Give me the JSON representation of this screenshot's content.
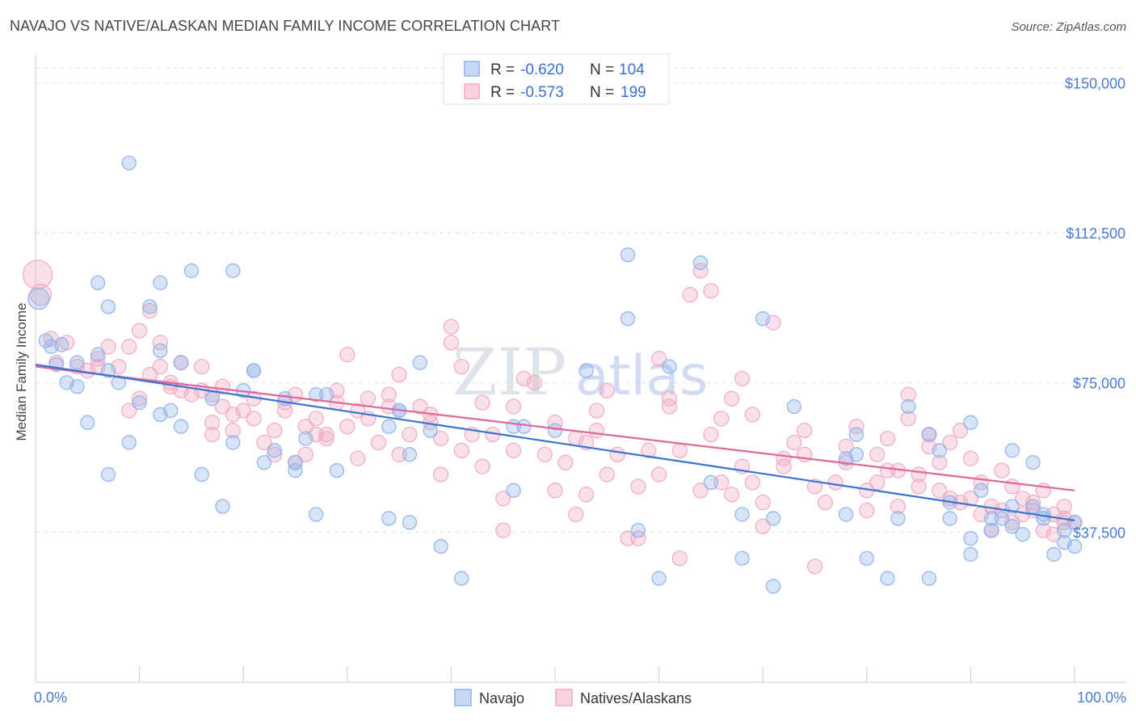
{
  "header": {
    "title": "NAVAJO VS NATIVE/ALASKAN MEDIAN FAMILY INCOME CORRELATION CHART",
    "source": "Source: ZipAtlas.com"
  },
  "watermark": {
    "zip": "ZIP",
    "atlas": "atlas"
  },
  "legend": {
    "rows": [
      {
        "r_label": "R = ",
        "r_value": "-0.620",
        "n_label": "N = ",
        "n_value": "104"
      },
      {
        "r_label": "R = ",
        "r_value": "-0.573",
        "n_label": "N = ",
        "n_value": "199"
      }
    ]
  },
  "bottom_legend": {
    "navajo": "Navajo",
    "natives": "Natives/Alaskans"
  },
  "chart_data": {
    "type": "scatter",
    "xlabel": "",
    "ylabel": "Median Family Income",
    "xlim": [
      0,
      100
    ],
    "ylim": [
      0,
      155000
    ],
    "x_tick_labels": [
      "0.0%",
      "100.0%"
    ],
    "y_ticks": [
      37500,
      75000,
      112500,
      150000
    ],
    "y_tick_labels": [
      "$37,500",
      "$75,000",
      "$112,500",
      "$150,000"
    ],
    "grid": true,
    "legend_placement": "top-center",
    "colors": {
      "navajo": "#8fb3ea",
      "navajo_line": "#3a74d0",
      "natives": "#f2a9c0",
      "natives_line": "#e0679a"
    },
    "series": [
      {
        "name": "Navajo",
        "trend": [
          [
            0,
            79500
          ],
          [
            100,
            40500
          ]
        ],
        "points": [
          [
            0.3,
            96
          ],
          [
            1,
            85.5
          ],
          [
            1.5,
            84
          ],
          [
            2,
            79.5
          ],
          [
            2.5,
            84.5
          ],
          [
            3,
            75
          ],
          [
            4,
            80
          ],
          [
            4,
            74
          ],
          [
            5,
            65
          ],
          [
            6,
            100
          ],
          [
            6,
            82
          ],
          [
            7,
            78
          ],
          [
            7,
            94
          ],
          [
            7,
            52
          ],
          [
            8,
            75
          ],
          [
            9,
            130
          ],
          [
            9,
            60
          ],
          [
            10,
            70
          ],
          [
            11,
            94
          ],
          [
            12,
            67
          ],
          [
            12,
            83
          ],
          [
            12,
            100
          ],
          [
            13,
            68
          ],
          [
            14,
            64
          ],
          [
            14,
            80
          ],
          [
            15,
            103
          ],
          [
            16,
            52
          ],
          [
            17,
            71
          ],
          [
            18,
            44
          ],
          [
            19,
            103
          ],
          [
            19,
            60
          ],
          [
            20,
            73
          ],
          [
            21,
            78
          ],
          [
            21,
            78
          ],
          [
            22,
            55
          ],
          [
            23,
            58
          ],
          [
            24,
            71
          ],
          [
            25,
            53
          ],
          [
            25,
            55
          ],
          [
            26,
            61
          ],
          [
            27,
            72
          ],
          [
            27,
            42
          ],
          [
            28,
            72
          ],
          [
            29,
            53
          ],
          [
            34,
            64
          ],
          [
            34,
            41
          ],
          [
            35,
            68
          ],
          [
            35,
            68
          ],
          [
            36,
            57
          ],
          [
            36,
            40
          ],
          [
            37,
            80
          ],
          [
            38,
            63
          ],
          [
            39,
            34
          ],
          [
            41,
            26
          ],
          [
            46,
            48
          ],
          [
            46,
            64
          ],
          [
            47,
            64
          ],
          [
            50,
            63
          ],
          [
            53,
            78
          ],
          [
            57,
            91
          ],
          [
            57,
            107
          ],
          [
            58,
            38
          ],
          [
            60,
            26
          ],
          [
            61,
            79
          ],
          [
            64,
            105
          ],
          [
            65,
            50
          ],
          [
            68,
            42
          ],
          [
            68,
            31
          ],
          [
            70,
            91
          ],
          [
            71,
            24
          ],
          [
            71,
            41
          ],
          [
            73,
            69
          ],
          [
            78,
            42
          ],
          [
            78,
            56
          ],
          [
            79,
            62
          ],
          [
            79,
            57
          ],
          [
            80,
            31
          ],
          [
            82,
            26
          ],
          [
            83,
            41
          ],
          [
            84,
            69
          ],
          [
            86,
            26
          ],
          [
            86,
            62
          ],
          [
            87,
            58
          ],
          [
            88,
            45
          ],
          [
            88,
            41
          ],
          [
            90,
            65
          ],
          [
            90,
            36
          ],
          [
            90,
            32
          ],
          [
            91,
            48
          ],
          [
            92,
            41
          ],
          [
            92,
            38
          ],
          [
            93,
            41
          ],
          [
            94,
            39
          ],
          [
            94,
            44
          ],
          [
            94,
            58
          ],
          [
            95,
            37
          ],
          [
            96,
            44
          ],
          [
            96,
            55
          ],
          [
            97,
            41
          ],
          [
            97,
            42
          ],
          [
            98,
            32
          ],
          [
            99,
            35
          ],
          [
            99,
            38
          ],
          [
            100,
            40
          ],
          [
            100,
            34
          ]
        ]
      },
      {
        "name": "Natives/Alaskans",
        "trend": [
          [
            0,
            79000
          ],
          [
            100,
            48000
          ]
        ],
        "points": [
          [
            0.2,
            102
          ],
          [
            0.5,
            97
          ],
          [
            1.5,
            86
          ],
          [
            2,
            80
          ],
          [
            3,
            85
          ],
          [
            4,
            79
          ],
          [
            5,
            78
          ],
          [
            6,
            81
          ],
          [
            6,
            79
          ],
          [
            7,
            84
          ],
          [
            8,
            79
          ],
          [
            9,
            84
          ],
          [
            9,
            68
          ],
          [
            10,
            88
          ],
          [
            10,
            71
          ],
          [
            11,
            93
          ],
          [
            11,
            77
          ],
          [
            12,
            85
          ],
          [
            12,
            79
          ],
          [
            13,
            74
          ],
          [
            13,
            75
          ],
          [
            14,
            73
          ],
          [
            14,
            80
          ],
          [
            15,
            72
          ],
          [
            16,
            73
          ],
          [
            16,
            79
          ],
          [
            17,
            65
          ],
          [
            17,
            72
          ],
          [
            17,
            62
          ],
          [
            18,
            69
          ],
          [
            18,
            74
          ],
          [
            19,
            63
          ],
          [
            19,
            67
          ],
          [
            20,
            68
          ],
          [
            21,
            71
          ],
          [
            21,
            66
          ],
          [
            22,
            60
          ],
          [
            23,
            57
          ],
          [
            23,
            63
          ],
          [
            24,
            68
          ],
          [
            24,
            70
          ],
          [
            25,
            72
          ],
          [
            25,
            55
          ],
          [
            26,
            64
          ],
          [
            26,
            57
          ],
          [
            27,
            66
          ],
          [
            27,
            62
          ],
          [
            28,
            62
          ],
          [
            28,
            61
          ],
          [
            29,
            73
          ],
          [
            29,
            70
          ],
          [
            30,
            82
          ],
          [
            30,
            64
          ],
          [
            31,
            56
          ],
          [
            31,
            68
          ],
          [
            32,
            71
          ],
          [
            32,
            66
          ],
          [
            33,
            60
          ],
          [
            34,
            69
          ],
          [
            34,
            72
          ],
          [
            35,
            77
          ],
          [
            35,
            57
          ],
          [
            36,
            62
          ],
          [
            37,
            69
          ],
          [
            38,
            65
          ],
          [
            38,
            67
          ],
          [
            39,
            61
          ],
          [
            39,
            52
          ],
          [
            40,
            89
          ],
          [
            40,
            85
          ],
          [
            41,
            58
          ],
          [
            41,
            79
          ],
          [
            42,
            62
          ],
          [
            43,
            70
          ],
          [
            43,
            54
          ],
          [
            44,
            62
          ],
          [
            45,
            38
          ],
          [
            45,
            46
          ],
          [
            46,
            58
          ],
          [
            46,
            69
          ],
          [
            47,
            76
          ],
          [
            48,
            75
          ],
          [
            49,
            57
          ],
          [
            50,
            65
          ],
          [
            50,
            48
          ],
          [
            51,
            55
          ],
          [
            52,
            61
          ],
          [
            52,
            42
          ],
          [
            53,
            60
          ],
          [
            53,
            47
          ],
          [
            54,
            63
          ],
          [
            54,
            68
          ],
          [
            55,
            52
          ],
          [
            55,
            73
          ],
          [
            56,
            57
          ],
          [
            57,
            36
          ],
          [
            58,
            36
          ],
          [
            58,
            49
          ],
          [
            59,
            58
          ],
          [
            60,
            81
          ],
          [
            60,
            52
          ],
          [
            61,
            69
          ],
          [
            61,
            71
          ],
          [
            62,
            58
          ],
          [
            62,
            31
          ],
          [
            63,
            97
          ],
          [
            64,
            103
          ],
          [
            64,
            48
          ],
          [
            65,
            62
          ],
          [
            65,
            98
          ],
          [
            66,
            50
          ],
          [
            66,
            66
          ],
          [
            67,
            47
          ],
          [
            67,
            71
          ],
          [
            68,
            54
          ],
          [
            68,
            76
          ],
          [
            69,
            67
          ],
          [
            69,
            50
          ],
          [
            70,
            45
          ],
          [
            70,
            39
          ],
          [
            71,
            90
          ],
          [
            72,
            56
          ],
          [
            72,
            54
          ],
          [
            73,
            60
          ],
          [
            74,
            63
          ],
          [
            74,
            57
          ],
          [
            75,
            49
          ],
          [
            75,
            29
          ],
          [
            76,
            45
          ],
          [
            77,
            50
          ],
          [
            78,
            55
          ],
          [
            78,
            59
          ],
          [
            79,
            64
          ],
          [
            80,
            43
          ],
          [
            80,
            48
          ],
          [
            81,
            50
          ],
          [
            81,
            57
          ],
          [
            82,
            61
          ],
          [
            82,
            53
          ],
          [
            83,
            44
          ],
          [
            83,
            53
          ],
          [
            84,
            66
          ],
          [
            84,
            72
          ],
          [
            85,
            52
          ],
          [
            85,
            49
          ],
          [
            86,
            62
          ],
          [
            86,
            59
          ],
          [
            87,
            55
          ],
          [
            87,
            48
          ],
          [
            88,
            60
          ],
          [
            88,
            46
          ],
          [
            89,
            63
          ],
          [
            89,
            45
          ],
          [
            90,
            56
          ],
          [
            90,
            46
          ],
          [
            91,
            42
          ],
          [
            91,
            50
          ],
          [
            92,
            44
          ],
          [
            92,
            38
          ],
          [
            93,
            43
          ],
          [
            93,
            53
          ],
          [
            94,
            49
          ],
          [
            94,
            40
          ],
          [
            95,
            46
          ],
          [
            95,
            42
          ],
          [
            96,
            43
          ],
          [
            96,
            45
          ],
          [
            97,
            38
          ],
          [
            97,
            48
          ],
          [
            98,
            42
          ],
          [
            98,
            37
          ],
          [
            99,
            41
          ],
          [
            99,
            44
          ],
          [
            99,
            40
          ],
          [
            100,
            40
          ]
        ]
      }
    ]
  }
}
